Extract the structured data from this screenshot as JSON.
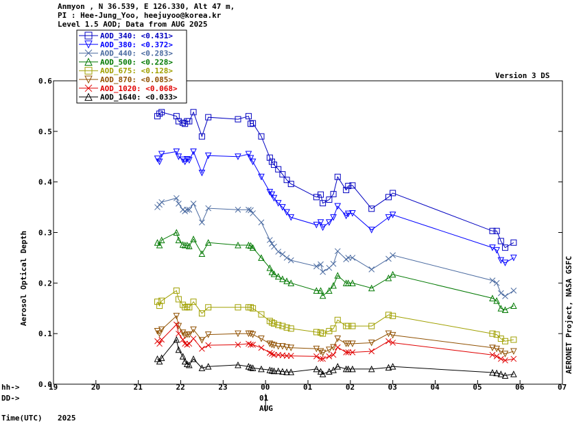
{
  "header": {
    "line1": "Anmyon , N 36.539, E 126.330, Alt 47 m,",
    "line2": "PI : Hee-Jung_Yoo, heejuyoo@korea.kr",
    "line3": "Level 1.5 AOD; Data from AUG 2025"
  },
  "version_label": "Version 3 DS",
  "right_label": "AERONET Project, NASA GSFC",
  "hh_label": "hh->",
  "dd_label": "DD->",
  "time_label": "Time(UTC)",
  "year_label": "2025",
  "day_label": "01",
  "month_label": "AUG",
  "chart_data": {
    "type": "line",
    "ylabel": "Aerosol Optical Depth",
    "ylim": [
      0,
      0.6
    ],
    "xlim": [
      19,
      31
    ],
    "y_ticks": [
      "0.0",
      "0.1",
      "0.2",
      "0.3",
      "0.4",
      "0.5",
      "0.6"
    ],
    "x_ticks": [
      "19",
      "20",
      "21",
      "22",
      "23",
      "00",
      "01",
      "02",
      "03",
      "04",
      "05",
      "06",
      "07"
    ],
    "legend_placement": "top-left",
    "x": [
      21.45,
      21.5,
      21.55,
      21.9,
      21.95,
      22.05,
      22.1,
      22.15,
      22.2,
      22.3,
      22.5,
      22.65,
      23.35,
      23.6,
      23.65,
      23.7,
      23.9,
      24.1,
      24.15,
      24.2,
      24.3,
      24.4,
      24.5,
      24.6,
      25.2,
      25.3,
      25.35,
      25.5,
      25.6,
      25.7,
      25.9,
      25.95,
      26.05,
      26.5,
      26.9,
      27.0,
      29.35,
      29.45,
      29.55,
      29.65,
      29.85
    ],
    "series": [
      {
        "name": "AOD_340",
        "mean_label": "<0.431>",
        "color": "#0000c0",
        "marker": "square",
        "values": [
          0.53,
          0.535,
          0.538,
          0.53,
          0.52,
          0.517,
          0.515,
          0.52,
          0.52,
          0.538,
          0.49,
          0.528,
          0.524,
          0.53,
          0.515,
          0.516,
          0.49,
          0.448,
          0.44,
          0.434,
          0.425,
          0.415,
          0.404,
          0.396,
          0.37,
          0.375,
          0.358,
          0.365,
          0.376,
          0.41,
          0.384,
          0.392,
          0.393,
          0.347,
          0.37,
          0.378,
          0.303,
          0.303,
          0.283,
          0.27,
          0.28
        ]
      },
      {
        "name": "AOD_380",
        "mean_label": "<0.372>",
        "color": "#0000ff",
        "marker": "triangle-down",
        "values": [
          0.446,
          0.44,
          0.455,
          0.46,
          0.45,
          0.444,
          0.44,
          0.445,
          0.443,
          0.46,
          0.418,
          0.452,
          0.45,
          0.455,
          0.447,
          0.44,
          0.41,
          0.38,
          0.375,
          0.368,
          0.358,
          0.35,
          0.34,
          0.33,
          0.315,
          0.32,
          0.31,
          0.32,
          0.33,
          0.352,
          0.333,
          0.337,
          0.338,
          0.305,
          0.33,
          0.335,
          0.27,
          0.265,
          0.245,
          0.24,
          0.25
        ]
      },
      {
        "name": "AOD_440",
        "mean_label": "<0.283>",
        "color": "#4a6aa0",
        "marker": "x",
        "values": [
          0.35,
          0.355,
          0.36,
          0.368,
          0.357,
          0.345,
          0.342,
          0.345,
          0.345,
          0.357,
          0.32,
          0.348,
          0.345,
          0.345,
          0.344,
          0.338,
          0.32,
          0.285,
          0.278,
          0.272,
          0.262,
          0.257,
          0.25,
          0.245,
          0.233,
          0.237,
          0.222,
          0.23,
          0.238,
          0.263,
          0.247,
          0.25,
          0.25,
          0.227,
          0.248,
          0.255,
          0.205,
          0.2,
          0.18,
          0.174,
          0.185
        ]
      },
      {
        "name": "AOD_500",
        "mean_label": "<0.228>",
        "color": "#007800",
        "marker": "triangle-up",
        "values": [
          0.28,
          0.275,
          0.285,
          0.3,
          0.285,
          0.276,
          0.275,
          0.275,
          0.273,
          0.287,
          0.258,
          0.28,
          0.275,
          0.275,
          0.274,
          0.27,
          0.25,
          0.23,
          0.222,
          0.218,
          0.213,
          0.208,
          0.204,
          0.2,
          0.185,
          0.185,
          0.175,
          0.185,
          0.195,
          0.215,
          0.2,
          0.2,
          0.2,
          0.19,
          0.21,
          0.217,
          0.17,
          0.165,
          0.15,
          0.147,
          0.155
        ]
      },
      {
        "name": "AOD_675",
        "mean_label": "<0.128>",
        "color": "#a0a000",
        "marker": "square",
        "values": [
          0.163,
          0.155,
          0.165,
          0.185,
          0.168,
          0.157,
          0.152,
          0.153,
          0.152,
          0.163,
          0.14,
          0.152,
          0.152,
          0.152,
          0.152,
          0.15,
          0.138,
          0.125,
          0.122,
          0.12,
          0.117,
          0.115,
          0.112,
          0.11,
          0.103,
          0.102,
          0.1,
          0.105,
          0.11,
          0.127,
          0.115,
          0.115,
          0.115,
          0.115,
          0.137,
          0.135,
          0.1,
          0.098,
          0.09,
          0.085,
          0.088
        ]
      },
      {
        "name": "AOD_870",
        "mean_label": "<0.085>",
        "color": "#905000",
        "marker": "triangle-down",
        "values": [
          0.105,
          0.1,
          0.108,
          0.135,
          0.115,
          0.102,
          0.096,
          0.098,
          0.098,
          0.108,
          0.087,
          0.098,
          0.1,
          0.1,
          0.1,
          0.098,
          0.09,
          0.08,
          0.078,
          0.077,
          0.075,
          0.075,
          0.073,
          0.072,
          0.07,
          0.065,
          0.062,
          0.068,
          0.073,
          0.09,
          0.08,
          0.08,
          0.08,
          0.082,
          0.1,
          0.097,
          0.072,
          0.07,
          0.065,
          0.06,
          0.065
        ]
      },
      {
        "name": "AOD_1020",
        "mean_label": "<0.068>",
        "color": "#e00000",
        "marker": "x",
        "values": [
          0.085,
          0.08,
          0.088,
          0.118,
          0.1,
          0.088,
          0.08,
          0.078,
          0.08,
          0.09,
          0.07,
          0.077,
          0.078,
          0.08,
          0.078,
          0.078,
          0.072,
          0.062,
          0.06,
          0.058,
          0.058,
          0.057,
          0.056,
          0.056,
          0.055,
          0.05,
          0.05,
          0.055,
          0.058,
          0.073,
          0.063,
          0.063,
          0.063,
          0.065,
          0.085,
          0.082,
          0.058,
          0.055,
          0.05,
          0.047,
          0.05
        ]
      },
      {
        "name": "AOD_1640",
        "mean_label": "<0.033>",
        "color": "#000000",
        "marker": "triangle-up",
        "values": [
          0.05,
          0.045,
          0.052,
          0.088,
          0.068,
          0.055,
          0.045,
          0.04,
          0.038,
          0.05,
          0.032,
          0.035,
          0.038,
          0.035,
          0.033,
          0.032,
          0.03,
          0.028,
          0.027,
          0.026,
          0.026,
          0.025,
          0.024,
          0.024,
          0.03,
          0.025,
          0.02,
          0.025,
          0.028,
          0.035,
          0.03,
          0.03,
          0.03,
          0.03,
          0.033,
          0.035,
          0.023,
          0.022,
          0.02,
          0.017,
          0.02
        ]
      }
    ]
  }
}
